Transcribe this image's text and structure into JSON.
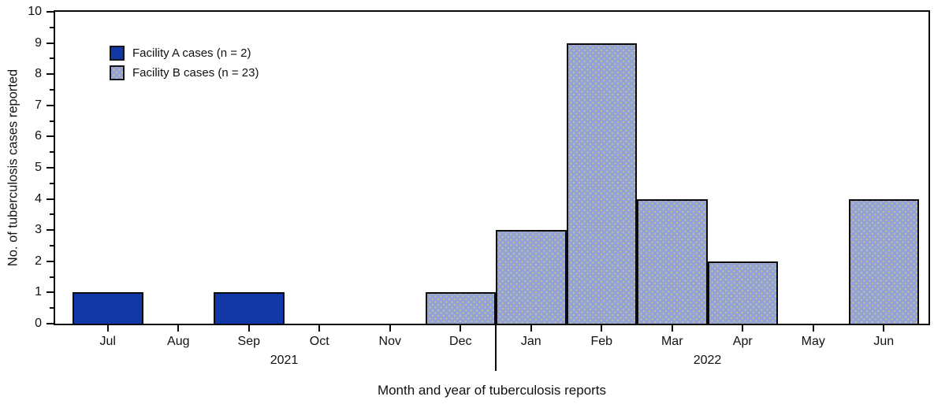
{
  "figure": {
    "y_axis_title": "No. of tuberculosis cases reported",
    "x_axis_title": "Month and year of tuberculosis reports"
  },
  "legend": {
    "items": [
      {
        "label": "Facility A cases (n = 2)",
        "color": "#1138A6",
        "pattern": "solid"
      },
      {
        "label": "Facility B cases (n = 23)",
        "color": "#92A2D8",
        "pattern": "dots"
      }
    ]
  },
  "chart_data": {
    "type": "bar",
    "title": "",
    "xlabel": "Month and year of tuberculosis reports",
    "ylabel": "No. of tuberculosis cases reported",
    "categories": [
      "Jul",
      "Aug",
      "Sep",
      "Oct",
      "Nov",
      "Dec",
      "Jan",
      "Feb",
      "Mar",
      "Apr",
      "May",
      "Jun"
    ],
    "series": [
      {
        "name": "Facility A cases (n = 2)",
        "color": "#1138A6",
        "pattern": "solid",
        "values": [
          1,
          0,
          1,
          0,
          0,
          0,
          0,
          0,
          0,
          0,
          0,
          0
        ]
      },
      {
        "name": "Facility B cases (n = 23)",
        "color": "#92A2D8",
        "pattern": "dots",
        "values": [
          0,
          0,
          0,
          0,
          0,
          1,
          3,
          9,
          4,
          2,
          0,
          4
        ]
      }
    ],
    "ylim": [
      0,
      10
    ],
    "y_major_step": 1,
    "y_minor_step": 0.5,
    "y_tick_labels": [
      "0",
      "1",
      "2",
      "3",
      "4",
      "5",
      "6",
      "7",
      "8",
      "9",
      "10"
    ],
    "year_groups": [
      {
        "label": "2021",
        "start_index": 0,
        "end_index": 5
      },
      {
        "label": "2022",
        "start_index": 6,
        "end_index": 11
      }
    ],
    "divider_after_index": 5,
    "grid": false,
    "legend_position": "top-left"
  }
}
